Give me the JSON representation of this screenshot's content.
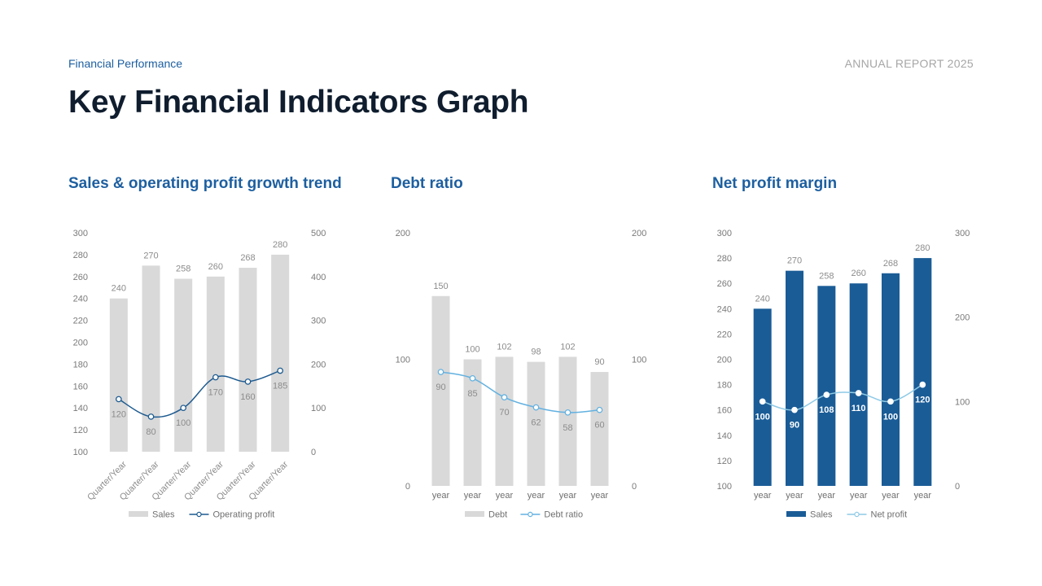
{
  "header": {
    "eyebrow": "Financial Performance",
    "report_tag": "ANNUAL REPORT 2025",
    "title": "Key Financial Indicators Graph"
  },
  "colors": {
    "bar_gray": "#d9d9d9",
    "bar_blue": "#1a5c96",
    "line_dark": "#1d5a90",
    "line_light": "#63b1e0",
    "text_gray": "#8c8c8c",
    "accent": "#1d5fa0"
  },
  "chart_data": [
    {
      "type": "bar",
      "title": "Sales & operating profit growth trend",
      "categories": [
        "Quarter/Year",
        "Quarter/Year",
        "Quarter/Year",
        "Quarter/Year",
        "Quarter/Year",
        "Quarter/Year"
      ],
      "rotated_labels": true,
      "ylim_left": [
        100,
        300
      ],
      "yticks_left": [
        100,
        120,
        140,
        160,
        180,
        200,
        220,
        240,
        260,
        280,
        300
      ],
      "ylim_right": [
        0,
        500
      ],
      "yticks_right": [
        0,
        100,
        200,
        300,
        400,
        500
      ],
      "legend_position": "bottom",
      "series": [
        {
          "name": "Sales",
          "kind": "bar",
          "axis": "left",
          "color": "#d9d9d9",
          "values": [
            240,
            270,
            258,
            260,
            268,
            280
          ],
          "value_labels": "above"
        },
        {
          "name": "Operating profit",
          "kind": "line",
          "axis": "right",
          "color": "#1d5a90",
          "values": [
            120,
            80,
            100,
            170,
            160,
            185
          ],
          "value_labels": "below"
        }
      ]
    },
    {
      "type": "bar",
      "title": "Debt ratio",
      "categories": [
        "year",
        "year",
        "year",
        "year",
        "year",
        "year"
      ],
      "rotated_labels": false,
      "ylim_left": [
        0,
        200
      ],
      "yticks_left": [
        0,
        100,
        200
      ],
      "ylim_right": [
        0,
        200
      ],
      "yticks_right": [
        0,
        100,
        200
      ],
      "legend_position": "bottom",
      "series": [
        {
          "name": "Debt",
          "kind": "bar",
          "axis": "left",
          "color": "#d9d9d9",
          "values": [
            150,
            100,
            102,
            98,
            102,
            90
          ],
          "value_labels": "above"
        },
        {
          "name": "Debt ratio",
          "kind": "line",
          "axis": "right",
          "color": "#63b1e0",
          "values": [
            90,
            85,
            70,
            62,
            58,
            60
          ],
          "value_labels": "below"
        }
      ]
    },
    {
      "type": "bar",
      "title": "Net profit margin",
      "categories": [
        "year",
        "year",
        "year",
        "year",
        "year",
        "year"
      ],
      "rotated_labels": false,
      "ylim_left": [
        100,
        300
      ],
      "yticks_left": [
        100,
        120,
        140,
        160,
        180,
        200,
        220,
        240,
        260,
        280,
        300
      ],
      "ylim_right": [
        0,
        300
      ],
      "yticks_right": [
        0,
        100,
        200,
        300
      ],
      "legend_position": "bottom",
      "series": [
        {
          "name": "Sales",
          "kind": "bar",
          "axis": "left",
          "color": "#1a5c96",
          "values": [
            240,
            270,
            258,
            260,
            268,
            280
          ],
          "value_labels": "above"
        },
        {
          "name": "Net profit",
          "kind": "line",
          "axis": "right",
          "color": "#8ecae6",
          "values": [
            100,
            90,
            108,
            110,
            100,
            120
          ],
          "value_labels": "below-white-bold",
          "marker_fill": "#ffffff",
          "marker_stroke": "#ffffff"
        }
      ]
    }
  ]
}
